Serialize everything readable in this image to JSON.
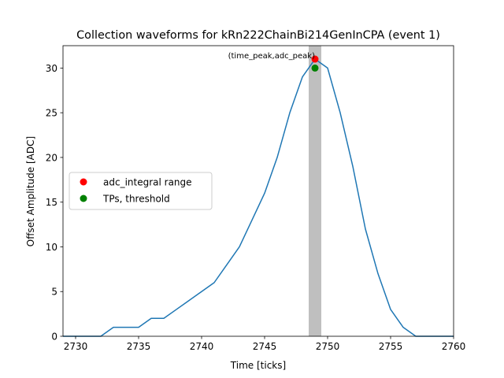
{
  "chart_data": {
    "type": "line",
    "title": "Collection waveforms for kRn222ChainBi214GenInCPA (event 1)",
    "xlabel": "Time [ticks]",
    "ylabel": "Offset Amplitude [ADC]",
    "xlim": [
      2729,
      2760
    ],
    "ylim": [
      0,
      32.5
    ],
    "xticks": [
      2730,
      2735,
      2740,
      2745,
      2750,
      2755,
      2760
    ],
    "yticks": [
      0,
      5,
      10,
      15,
      20,
      25,
      30
    ],
    "grid": false,
    "legend_position": "center-left",
    "series": [
      {
        "name": "",
        "color": "#1f77b4",
        "x": [
          2729,
          2730,
          2731,
          2732,
          2733,
          2734,
          2735,
          2736,
          2737,
          2738,
          2739,
          2740,
          2741,
          2742,
          2743,
          2744,
          2745,
          2746,
          2747,
          2748,
          2749,
          2750,
          2751,
          2752,
          2753,
          2754,
          2755,
          2756,
          2757,
          2758,
          2759,
          2760
        ],
        "y": [
          0,
          0,
          0,
          0,
          1,
          1,
          1,
          2,
          2,
          3,
          4,
          5,
          6,
          8,
          10,
          13,
          16,
          20,
          25,
          29,
          31,
          30,
          25,
          19,
          12,
          7,
          3,
          1,
          0,
          0,
          0,
          0
        ]
      }
    ],
    "shaded_span": {
      "x": [
        2748.5,
        2749.5
      ],
      "color": "#bfbfbf"
    },
    "markers": [
      {
        "name": "adc_integral range",
        "x": 2749,
        "y": 31,
        "color": "#ff0000"
      },
      {
        "name": "TPs, threshold",
        "x": 2749,
        "y": 30,
        "color": "#008000"
      }
    ],
    "annotation": {
      "text": "(time_peak,adc_peak)",
      "x": 2749,
      "y": 31
    }
  }
}
